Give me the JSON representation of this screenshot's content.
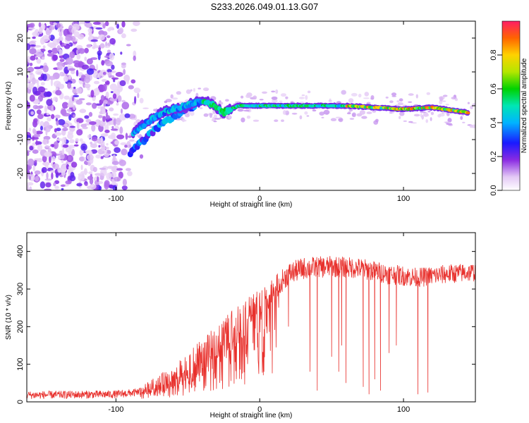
{
  "title": "S233.2026.049.01.13.G07",
  "chart_data": [
    {
      "type": "heatmap",
      "name": "spectrogram",
      "xlabel": "Height of straight line (km)",
      "ylabel": "Frequency (Hz)",
      "xlim": [
        -162,
        150
      ],
      "ylim": [
        -25,
        25
      ],
      "xticks": [
        -100,
        0,
        100
      ],
      "yticks": [
        -20,
        -10,
        0,
        10,
        20
      ],
      "colorbar": {
        "label": "Normalized spectral amplitude",
        "range": [
          0,
          1
        ],
        "ticks": [
          0.0,
          0.2,
          0.4,
          0.6,
          0.8
        ]
      },
      "ridge": {
        "description": "dominant frequency track",
        "x": [
          -88,
          -82,
          -75,
          -68,
          -60,
          -52,
          -45,
          -38,
          -32,
          -25,
          -20,
          -15,
          -10,
          0,
          20,
          40,
          60,
          80,
          100,
          120,
          145
        ],
        "y": [
          -8,
          -6,
          -4,
          -2,
          -1,
          0,
          1,
          1.5,
          0,
          -2,
          -1,
          0,
          0,
          0,
          0,
          0,
          0,
          -0.5,
          -1,
          -0.5,
          -2
        ]
      },
      "secondary_ridge": {
        "x": [
          -90,
          -80,
          -70,
          -60,
          -50,
          -42
        ],
        "y": [
          -14,
          -10,
          -6,
          -3,
          -1,
          1
        ]
      }
    },
    {
      "type": "line",
      "name": "snr",
      "xlabel": "Height of straight line (km)",
      "ylabel": "SNR (10 * v/v)",
      "xlim": [
        -162,
        150
      ],
      "ylim": [
        0,
        450
      ],
      "xticks": [
        -100,
        0,
        100
      ],
      "yticks": [
        0,
        100,
        200,
        300,
        400
      ],
      "color": "#e8302c",
      "envelope": {
        "x": [
          -162,
          -100,
          -85,
          -75,
          -60,
          -45,
          -30,
          -15,
          0,
          10,
          15,
          20,
          30,
          50,
          70,
          90,
          110,
          130,
          150
        ],
        "y": [
          18,
          20,
          25,
          40,
          60,
          100,
          150,
          210,
          260,
          300,
          320,
          340,
          355,
          360,
          355,
          340,
          330,
          340,
          345
        ]
      },
      "spread": {
        "x": [
          -162,
          -85,
          -75,
          -45,
          -15,
          15,
          150
        ],
        "y": [
          15,
          15,
          40,
          100,
          110,
          60,
          50
        ]
      },
      "dropouts": [
        {
          "x": 20,
          "y": 200
        },
        {
          "x": 35,
          "y": 80
        },
        {
          "x": 40,
          "y": 30
        },
        {
          "x": 50,
          "y": 120
        },
        {
          "x": 55,
          "y": 80
        },
        {
          "x": 57,
          "y": 150
        },
        {
          "x": 60,
          "y": 50
        },
        {
          "x": 72,
          "y": 40
        },
        {
          "x": 76,
          "y": 20
        },
        {
          "x": 80,
          "y": 60
        },
        {
          "x": 84,
          "y": 30
        },
        {
          "x": 90,
          "y": 130
        },
        {
          "x": 95,
          "y": 150
        },
        {
          "x": 110,
          "y": 20
        },
        {
          "x": 117,
          "y": 25
        }
      ]
    }
  ]
}
